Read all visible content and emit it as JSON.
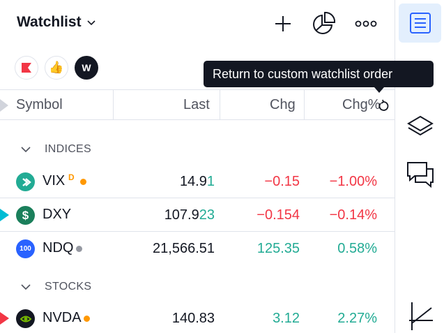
{
  "header": {
    "title": "Watchlist",
    "add_icon": "plus-icon",
    "chart_icon": "pie-chart-icon",
    "more_icon": "more-dots-icon"
  },
  "flag_buttons": [
    {
      "icon": "red-flag-icon"
    },
    {
      "icon": "thumbs-up-icon"
    },
    {
      "label": "W"
    }
  ],
  "tooltip": "Return to custom watchlist order",
  "columns": {
    "symbol": "Symbol",
    "last": "Last",
    "chg": "Chg",
    "chgp": "Chg%"
  },
  "sections": [
    {
      "label": "INDICES",
      "rows": [
        {
          "symbol": "VIX",
          "badge": "D",
          "status": "orange",
          "last_main": "14.9",
          "last_tail": "1",
          "chg": "−0.15",
          "chgp": "−1.00%",
          "logo_color": "#22ab94",
          "logo_icon": "arrow-right-icon"
        },
        {
          "symbol": "DXY",
          "status": "",
          "last_main": "107.9",
          "last_tail": "23",
          "chg": "−0.154",
          "chgp": "−0.14%",
          "logo_color": "#1b7f5b",
          "logo_text": "$",
          "flag_color": "#00bcd4"
        },
        {
          "symbol": "NDQ",
          "status": "grey",
          "last_main": "21,566.51",
          "last_tail": "",
          "chg": "125.35",
          "chgp": "0.58%",
          "logo_color": "#2962ff",
          "logo_text": "100"
        }
      ]
    },
    {
      "label": "STOCKS",
      "rows": [
        {
          "symbol": "NVDA",
          "status": "orange",
          "last_main": "140.83",
          "last_tail": "",
          "chg": "3.12",
          "chgp": "2.27%",
          "logo_color": "#131722",
          "logo_icon": "nvidia-logo-icon",
          "flag_color": "#f23645"
        }
      ]
    }
  ],
  "colors": {
    "negative": "#f23645",
    "positive": "#22ab94",
    "accent": "#2962ff",
    "tooltip_bg": "#131722"
  },
  "rightbar": [
    {
      "icon": "watchlist-icon",
      "active": true
    },
    {
      "icon": "layers-icon"
    },
    {
      "icon": "chat-icon"
    },
    {
      "icon": "drawing-tool-icon"
    }
  ]
}
